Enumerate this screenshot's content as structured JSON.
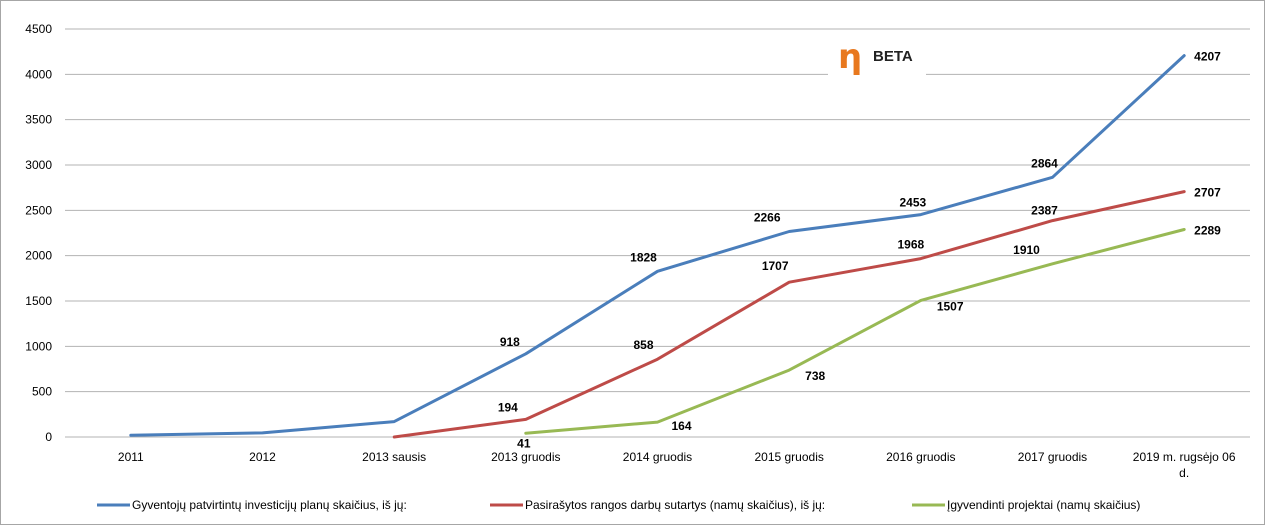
{
  "chart_data": {
    "type": "line",
    "categories": [
      "2011",
      "2012",
      "2013 sausis",
      "2013 gruodis",
      "2014 gruodis",
      "2015 gruodis",
      "2016 gruodis",
      "2017 gruodis",
      "2019 m. rugsėjo 06 d."
    ],
    "ylim": [
      0,
      4500
    ],
    "yticks": [
      0,
      500,
      1000,
      1500,
      2000,
      2500,
      3000,
      3500,
      4000,
      4500
    ],
    "grid": true,
    "legend_position": "bottom",
    "series": [
      {
        "name": "Gyventojų patvirtintų investicijų planų skaičius, iš jų:",
        "color": "#4a7ebb",
        "values": [
          20,
          45,
          170,
          918,
          1828,
          2266,
          2453,
          2864,
          4207
        ],
        "labels": [
          "",
          "",
          "",
          "918",
          "1828",
          "2266",
          "2453",
          "2864",
          "4207"
        ]
      },
      {
        "name": "Pasirašytos rangos darbų sutartys (namų skaičius), iš jų:",
        "color": "#be4b48",
        "values": [
          null,
          null,
          0,
          194,
          858,
          1707,
          1968,
          2387,
          2707
        ],
        "labels": [
          "",
          "",
          "",
          "194",
          "858",
          "1707",
          "1968",
          "2387",
          "2707"
        ]
      },
      {
        "name": "Įgyvendinti projektai (namų skaičius)",
        "color": "#98b954",
        "values": [
          null,
          null,
          null,
          41,
          164,
          738,
          1507,
          1910,
          2289
        ],
        "labels": [
          "",
          "",
          "",
          "41",
          "164",
          "738",
          "1507",
          "1910",
          "2289"
        ]
      }
    ]
  },
  "logo": {
    "glyph": "η",
    "text": "BETA",
    "glyph_color": "#e8781e"
  }
}
